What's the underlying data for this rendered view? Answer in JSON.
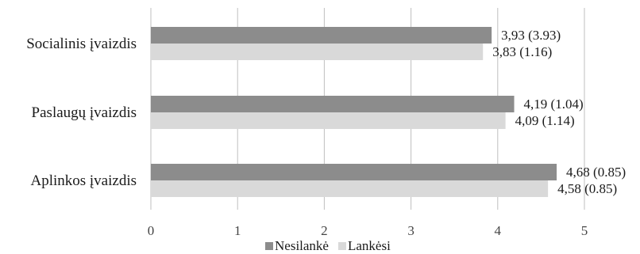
{
  "chart_data": {
    "type": "bar",
    "orientation": "horizontal",
    "categories": [
      "Socialinis įvaizdis",
      "Paslaugų įvaizdis",
      "Aplinkos įvaizdis"
    ],
    "series": [
      {
        "name": "Nesilankė",
        "color": "#8c8c8c",
        "values": [
          3.93,
          4.19,
          4.68
        ],
        "labels": [
          "3,93 (3.93)",
          "4,19 (1.04)",
          "4,68 (0.85)"
        ]
      },
      {
        "name": "Lankėsi",
        "color": "#d9d9d9",
        "values": [
          3.83,
          4.09,
          4.58
        ],
        "labels": [
          "3,83 (1.16)",
          "4,09 (1.14)",
          "4,58 (0.85)"
        ]
      }
    ],
    "xlim": [
      0,
      5
    ],
    "xticks": [
      0,
      1,
      2,
      3,
      4,
      5
    ],
    "grid": true,
    "gridColor": "#bfbfbf",
    "legend_position": "bottom"
  }
}
